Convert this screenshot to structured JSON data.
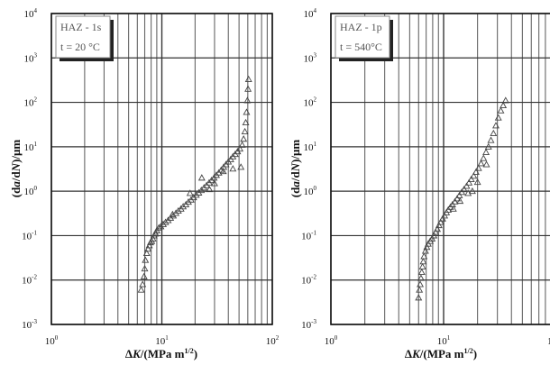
{
  "chart_data": [
    {
      "type": "scatter",
      "xscale": "log",
      "yscale": "log",
      "x_range": [
        1,
        100
      ],
      "y_range": [
        0.001,
        10000
      ],
      "xlabel_parts": [
        "Δ",
        "K",
        "/(MPa m",
        "1/2",
        ")"
      ],
      "ylabel_parts": [
        "(d",
        "a",
        "/d",
        "N",
        ")/μm"
      ],
      "x_ticks": [
        1,
        10,
        100
      ],
      "x_tick_mantissa": "10",
      "x_tick_exponents": [
        "0",
        "1",
        "2"
      ],
      "y_ticks": [
        0.001,
        0.01,
        0.1,
        1,
        10,
        100,
        1000,
        10000
      ],
      "y_tick_mantissa": "10",
      "y_tick_exponents": [
        "-3",
        "-2",
        "-1",
        "0",
        "1",
        "2",
        "3",
        "4"
      ],
      "grid": true,
      "legend": {
        "line1": "HAZ - 1s",
        "line2": "t = 20 °C",
        "placement": "top-left"
      },
      "marker": "triangle",
      "marker_color": "#444444",
      "points": [
        [
          6.5,
          0.006
        ],
        [
          6.7,
          0.008
        ],
        [
          6.9,
          0.012
        ],
        [
          7.0,
          0.018
        ],
        [
          7.1,
          0.028
        ],
        [
          7.3,
          0.04
        ],
        [
          7.5,
          0.05
        ],
        [
          7.7,
          0.06
        ],
        [
          7.9,
          0.07
        ],
        [
          8.1,
          0.075
        ],
        [
          8.3,
          0.085
        ],
        [
          8.5,
          0.1
        ],
        [
          8.8,
          0.11
        ],
        [
          9.0,
          0.13
        ],
        [
          9.4,
          0.15
        ],
        [
          9.8,
          0.16
        ],
        [
          10.3,
          0.18
        ],
        [
          10.8,
          0.2
        ],
        [
          11.4,
          0.22
        ],
        [
          12.0,
          0.25
        ],
        [
          12.7,
          0.28
        ],
        [
          13.4,
          0.32
        ],
        [
          14.1,
          0.36
        ],
        [
          14.9,
          0.4
        ],
        [
          15.6,
          0.45
        ],
        [
          16.5,
          0.5
        ],
        [
          17.4,
          0.57
        ],
        [
          18.4,
          0.64
        ],
        [
          19.4,
          0.72
        ],
        [
          20.5,
          0.82
        ],
        [
          21.6,
          0.92
        ],
        [
          22.8,
          1.05
        ],
        [
          24.1,
          1.2
        ],
        [
          25.4,
          1.35
        ],
        [
          26.8,
          1.55
        ],
        [
          28.2,
          1.75
        ],
        [
          29.7,
          2.0
        ],
        [
          31.2,
          2.3
        ],
        [
          32.8,
          2.6
        ],
        [
          34.5,
          3.0
        ],
        [
          36.3,
          3.5
        ],
        [
          38.1,
          4.0
        ],
        [
          40.0,
          4.6
        ],
        [
          42.0,
          5.2
        ],
        [
          44.0,
          6.0
        ],
        [
          46.2,
          6.8
        ],
        [
          48.5,
          7.8
        ],
        [
          50.9,
          9.0
        ],
        [
          53.4,
          11
        ],
        [
          55.0,
          15
        ],
        [
          56.5,
          22
        ],
        [
          57.5,
          35
        ],
        [
          58.5,
          60
        ],
        [
          59.5,
          110
        ],
        [
          60.3,
          200
        ],
        [
          61.0,
          330
        ],
        [
          23.0,
          2.0
        ],
        [
          30.0,
          1.5
        ],
        [
          36.0,
          2.8
        ],
        [
          44.0,
          3.2
        ],
        [
          52.0,
          3.5
        ],
        [
          18.0,
          0.9
        ],
        [
          12.5,
          0.3
        ],
        [
          27.0,
          1.1
        ]
      ]
    },
    {
      "type": "scatter",
      "xscale": "log",
      "yscale": "log",
      "x_range": [
        1,
        100
      ],
      "y_range": [
        0.001,
        10000
      ],
      "xlabel_parts": [
        "Δ",
        "K",
        "/(MPa m",
        "1/2",
        ")"
      ],
      "ylabel_parts": [
        "(d",
        "a",
        "/d",
        "N",
        ")/μm"
      ],
      "x_ticks": [
        1,
        10
      ],
      "x_tick_mantissa": "10",
      "x_tick_exponents": [
        "0",
        "1"
      ],
      "x_tick_right_edge": "1",
      "y_ticks": [
        0.001,
        0.01,
        0.1,
        1,
        10,
        100,
        1000,
        10000
      ],
      "y_tick_mantissa": "10",
      "y_tick_exponents": [
        "-3",
        "-2",
        "-1",
        "0",
        "1",
        "2",
        "3",
        "4"
      ],
      "grid": true,
      "legend": {
        "line1": "HAZ - 1p",
        "line2": "t = 540°C",
        "placement": "top-left"
      },
      "marker": "triangle",
      "marker_color": "#444444",
      "points": [
        [
          6.0,
          0.004
        ],
        [
          6.1,
          0.006
        ],
        [
          6.2,
          0.008
        ],
        [
          6.3,
          0.011
        ],
        [
          6.4,
          0.015
        ],
        [
          6.5,
          0.02
        ],
        [
          6.6,
          0.026
        ],
        [
          6.7,
          0.034
        ],
        [
          6.9,
          0.045
        ],
        [
          7.1,
          0.055
        ],
        [
          7.3,
          0.065
        ],
        [
          7.6,
          0.075
        ],
        [
          7.9,
          0.085
        ],
        [
          8.2,
          0.1
        ],
        [
          8.5,
          0.12
        ],
        [
          8.8,
          0.14
        ],
        [
          9.1,
          0.17
        ],
        [
          9.4,
          0.2
        ],
        [
          9.8,
          0.24
        ],
        [
          10.2,
          0.28
        ],
        [
          10.6,
          0.33
        ],
        [
          11.0,
          0.38
        ],
        [
          11.5,
          0.44
        ],
        [
          12.0,
          0.5
        ],
        [
          12.6,
          0.58
        ],
        [
          13.2,
          0.68
        ],
        [
          13.8,
          0.8
        ],
        [
          14.5,
          0.95
        ],
        [
          15.2,
          1.1
        ],
        [
          16.0,
          1.3
        ],
        [
          16.8,
          1.55
        ],
        [
          17.6,
          1.85
        ],
        [
          18.5,
          2.2
        ],
        [
          19.4,
          2.7
        ],
        [
          20.4,
          3.3
        ],
        [
          21.5,
          4.2
        ],
        [
          22.6,
          5.5
        ],
        [
          23.8,
          7.5
        ],
        [
          25.0,
          10
        ],
        [
          26.3,
          14
        ],
        [
          27.7,
          20
        ],
        [
          29.1,
          30
        ],
        [
          30.6,
          45
        ],
        [
          32.2,
          65
        ],
        [
          33.8,
          85
        ],
        [
          35.5,
          110
        ],
        [
          14.0,
          0.6
        ],
        [
          16.5,
          0.9
        ],
        [
          18.0,
          1.0
        ],
        [
          20.0,
          1.6
        ],
        [
          12.2,
          0.4
        ],
        [
          24.0,
          4.0
        ]
      ]
    }
  ]
}
